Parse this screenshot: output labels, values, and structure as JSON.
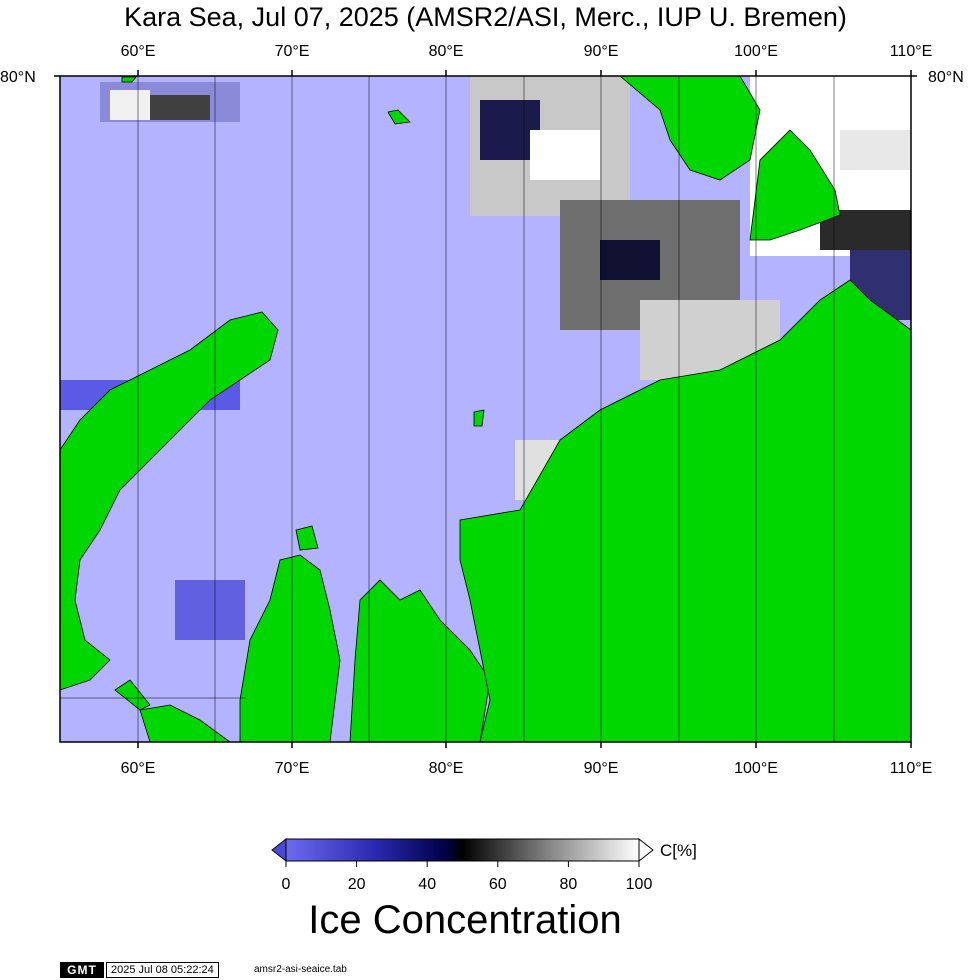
{
  "title": "Kara Sea, Jul 07, 2025 (AMSR2/ASI, Merc., IUP U. Bremen)",
  "colors": {
    "water": "#b3b3ff",
    "land": "#00d600",
    "ice_low": "#5a5ae6",
    "ice_mid": "#000000",
    "ice_high": "#ffffff"
  },
  "lon_ticks": [
    "60°E",
    "70°E",
    "80°E",
    "90°E",
    "100°E",
    "110°E"
  ],
  "lat_label_left": "80°N",
  "lat_label_right": "80°N",
  "colorbar": {
    "ticks": [
      "0",
      "20",
      "40",
      "60",
      "80",
      "100"
    ],
    "unit": "C[%]",
    "label": "Ice Concentration"
  },
  "footer": {
    "logo": "GMT",
    "timestamp": "2025 Jul 08 05:22:24",
    "file": "amsr2-asi-seaice.tab"
  }
}
